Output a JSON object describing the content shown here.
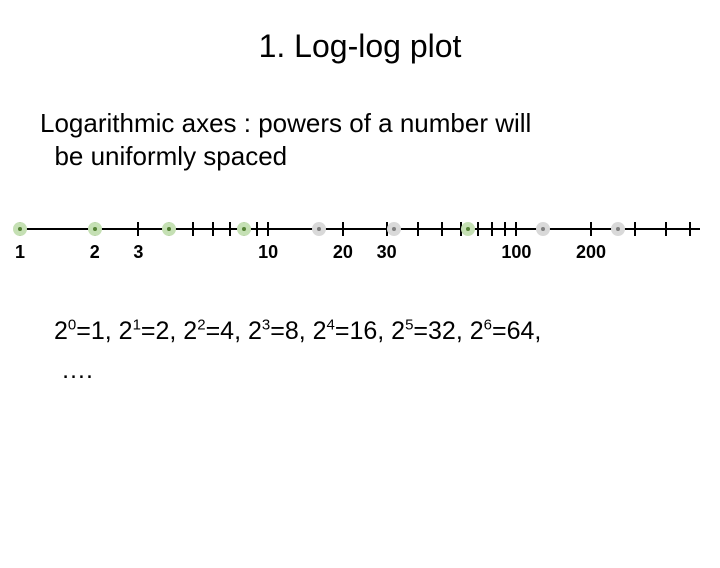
{
  "title": "1. Log-log plot",
  "subtitle_line1": "Logarithmic axes : powers of a number will",
  "subtitle_line2": "be uniformly spaced",
  "axis": {
    "line_color": "#000000",
    "tick_color": "#000000",
    "label_fontsize": 18,
    "range_log10": [
      0,
      2.74
    ],
    "ticks_at": [
      1,
      2,
      3,
      4,
      5,
      6,
      7,
      8,
      9,
      10,
      20,
      30,
      40,
      50,
      60,
      70,
      80,
      90,
      100,
      200,
      300,
      400,
      500
    ],
    "labels": [
      {
        "value": 1,
        "text": "1"
      },
      {
        "value": 2,
        "text": "2"
      },
      {
        "value": 3,
        "text": "3"
      },
      {
        "value": 10,
        "text": "10"
      },
      {
        "value": 20,
        "text": "20"
      },
      {
        "value": 30,
        "text": "30"
      },
      {
        "value": 100,
        "text": "100"
      },
      {
        "value": 200,
        "text": "200"
      }
    ],
    "markers": [
      {
        "value": 1,
        "fill": "#c5e0b4",
        "dot": "#548235"
      },
      {
        "value": 2,
        "fill": "#c5e0b4",
        "dot": "#548235"
      },
      {
        "value": 4,
        "fill": "#c5e0b4",
        "dot": "#548235"
      },
      {
        "value": 8,
        "fill": "#c5e0b4",
        "dot": "#548235"
      },
      {
        "value": 16,
        "fill": "#d9d9d9",
        "dot": "#808080"
      },
      {
        "value": 32,
        "fill": "#d9d9d9",
        "dot": "#808080"
      },
      {
        "value": 64,
        "fill": "#c5e0b4",
        "dot": "#548235"
      },
      {
        "value": 128,
        "fill": "#d9d9d9",
        "dot": "#808080"
      },
      {
        "value": 256,
        "fill": "#d9d9d9",
        "dot": "#808080"
      }
    ]
  },
  "powers": {
    "terms": [
      {
        "base": "2",
        "exp": "0",
        "eq": "1"
      },
      {
        "base": "2",
        "exp": "1",
        "eq": "2"
      },
      {
        "base": "2",
        "exp": "2",
        "eq": "4"
      },
      {
        "base": "2",
        "exp": "3",
        "eq": "8"
      },
      {
        "base": "2",
        "exp": "4",
        "eq": "16"
      },
      {
        "base": "2",
        "exp": "5",
        "eq": "32"
      },
      {
        "base": "2",
        "exp": "6",
        "eq": "64"
      }
    ],
    "trailing": "…."
  }
}
